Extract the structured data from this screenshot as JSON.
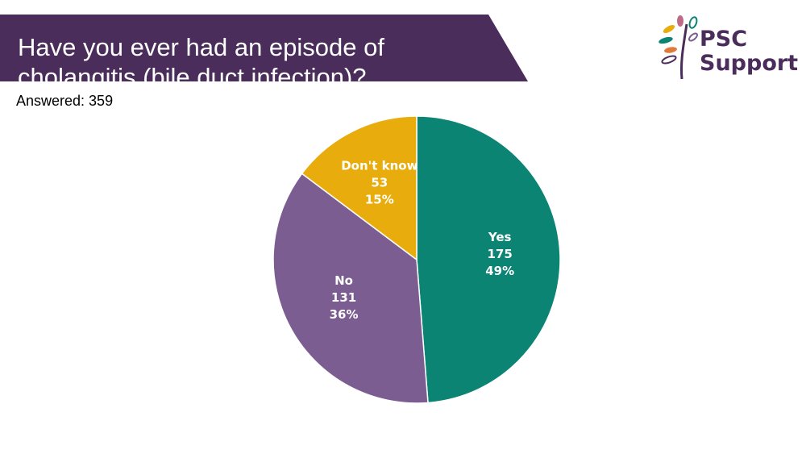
{
  "header": {
    "title_line1": "Have you ever had an episode of",
    "title_line2": "cholangitis (bile duct infection)?",
    "banner_color": "#4a2d5a"
  },
  "answered": "Answered: 359",
  "logo": {
    "line1": "PSC",
    "line2": "Support",
    "icon": "tree-leaves-icon",
    "color": "#4a2d5a"
  },
  "chart_data": {
    "type": "pie",
    "title": "",
    "start_angle_deg": 0,
    "direction": "clockwise",
    "slices": [
      {
        "label": "Yes",
        "value": 175,
        "percent": "49%",
        "color": "#0b8474"
      },
      {
        "label": "No",
        "value": 131,
        "percent": "36%",
        "color": "#7b5d91"
      },
      {
        "label": "Don't know",
        "value": 53,
        "percent": "15%",
        "color": "#e8ad0c"
      }
    ]
  }
}
